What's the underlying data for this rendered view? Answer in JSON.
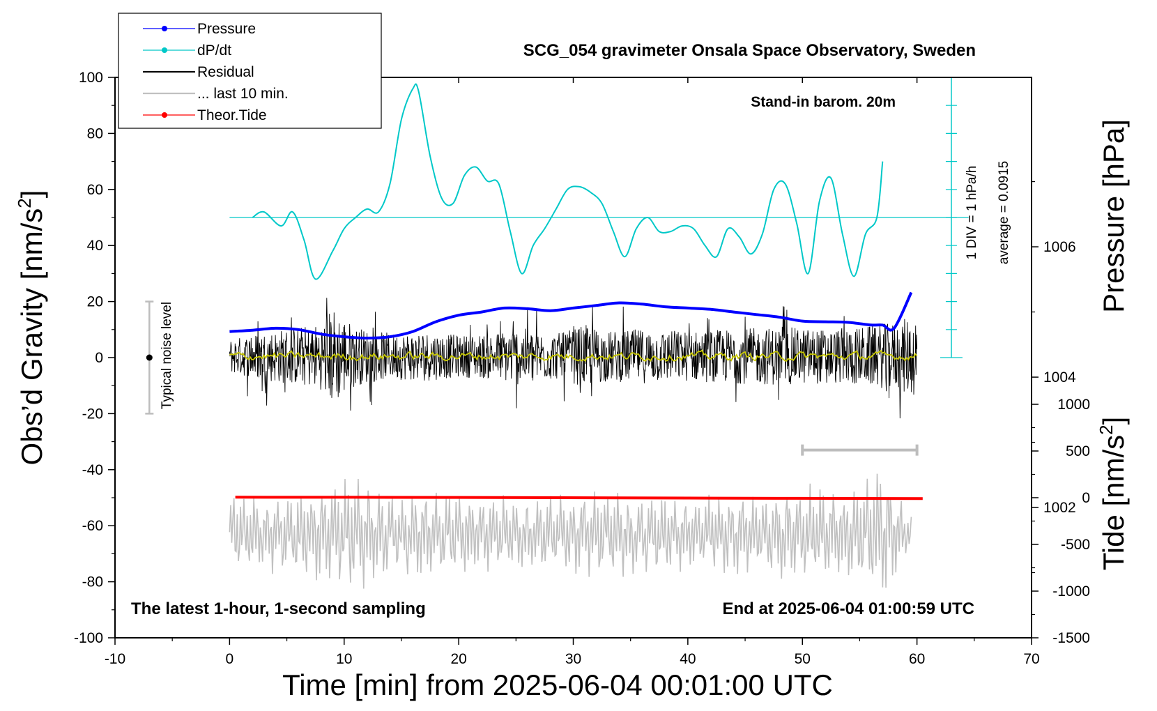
{
  "chart_data": {
    "type": "line",
    "title": "SCG_054 gravimeter Onsala Space Observatory, Sweden",
    "xlabel": "Time [min] from 2025-06-04 00:01:00 UTC",
    "ylabel_left_main": "Obs’d Gravity [nm/s",
    "ylabel_left_sup": "2",
    "ylabel_left_end": "]",
    "ylabel_right_pressure": "Pressure [hPa]",
    "ylabel_right_tide_main": "Tide [nm/s",
    "ylabel_right_tide_sup": "2",
    "ylabel_right_tide_end": "]",
    "xlim": [
      -10,
      70
    ],
    "ylim": [
      -100,
      100
    ],
    "x_ticks": [
      -10,
      0,
      10,
      20,
      30,
      40,
      50,
      60,
      70
    ],
    "y_ticks": [
      -100,
      -80,
      -60,
      -40,
      -20,
      0,
      20,
      40,
      60,
      80,
      100
    ],
    "pressure_axis": {
      "ticks": [
        1002,
        1004,
        1006
      ],
      "ylim": [
        1000,
        1008.6
      ]
    },
    "tide_axis": {
      "ticks": [
        -1500,
        -1000,
        -500,
        0,
        500,
        1000
      ],
      "ylim": [
        -1500,
        1000
      ]
    },
    "annotations": {
      "barometer": "Stand-in barom. 20m",
      "sampling": "The latest 1-hour, 1-second sampling",
      "end_time": "End at 2025-06-04 01:00:59 UTC",
      "noise": "Typical noise level",
      "div": "1 DIV = 1 hPa/h",
      "average": "average = 0.0915"
    },
    "legend": [
      {
        "name": "Pressure",
        "color": "#0000ff",
        "marker": true
      },
      {
        "name": "dP/dt",
        "color": "#00c8c8",
        "marker": true
      },
      {
        "name": "Residual",
        "color": "#000000",
        "marker": false
      },
      {
        "name": "... last 10 min.",
        "color": "#c0c0c0",
        "marker": false
      },
      {
        "name": "Theor.Tide",
        "color": "#ff0000",
        "marker": true
      }
    ],
    "series": [
      {
        "name": "Pressure",
        "axis": "pressure",
        "color": "#0000ff",
        "x": [
          0,
          2,
          4,
          6,
          8,
          10,
          12,
          14,
          16,
          18,
          20,
          22,
          24,
          26,
          28,
          30,
          32,
          34,
          36,
          38,
          40,
          42,
          44,
          46,
          48,
          50,
          52,
          54,
          56,
          57,
          58,
          59.5
        ],
        "y": [
          1004.7,
          1004.72,
          1004.75,
          1004.73,
          1004.66,
          1004.62,
          1004.6,
          1004.62,
          1004.7,
          1004.85,
          1004.95,
          1005.0,
          1005.06,
          1005.05,
          1005.02,
          1005.06,
          1005.1,
          1005.14,
          1005.12,
          1005.08,
          1005.06,
          1005.04,
          1005.0,
          1004.96,
          1004.92,
          1004.86,
          1004.85,
          1004.84,
          1004.8,
          1004.8,
          1004.75,
          1005.3
        ]
      },
      {
        "name": "dP/dt",
        "axis": "gravity",
        "color": "#00c8c8",
        "x": [
          2,
          3,
          4.5,
          5.5,
          6.5,
          7.5,
          9,
          10,
          11,
          12,
          13,
          14,
          15,
          16,
          16.5,
          17.5,
          18.5,
          19.5,
          20.5,
          21.5,
          22.5,
          23.5,
          24.5,
          25.5,
          26.5,
          27.5,
          28.5,
          29.5,
          30.5,
          31.5,
          32.5,
          33.5,
          34.5,
          35.5,
          36.5,
          37.5,
          38.5,
          39.5,
          40.5,
          41.5,
          42.5,
          43.5,
          44.5,
          45.5,
          46.5,
          47.5,
          48.5,
          49.5,
          50.5,
          51.5,
          52.5,
          53.5,
          54.5,
          55.5,
          56.5,
          57
        ],
        "y": [
          50,
          52,
          47,
          52,
          42,
          28,
          38,
          46,
          50,
          53,
          52,
          62,
          85,
          96,
          95,
          72,
          57,
          55,
          65,
          68,
          63,
          62,
          45,
          30,
          40,
          46,
          53,
          60,
          61,
          59,
          55,
          45,
          36,
          46,
          50,
          45,
          45,
          47,
          46,
          40,
          36,
          46,
          43,
          37,
          44,
          60,
          62,
          48,
          30,
          56,
          64,
          44,
          29,
          44,
          50,
          70
        ]
      },
      {
        "name": "Residual",
        "axis": "gravity",
        "color": "#000000",
        "x_range": [
          0,
          60
        ],
        "envelope_x": [
          0,
          3,
          6,
          8,
          9,
          11,
          14,
          17,
          20,
          23,
          25,
          27,
          29,
          31,
          33,
          36,
          40,
          44,
          48,
          52,
          55,
          58,
          60
        ],
        "envelope_y": [
          8,
          12,
          14,
          16,
          24,
          14,
          11,
          12,
          10,
          11,
          14,
          12,
          11,
          15,
          12,
          13,
          12,
          13,
          14,
          13,
          14,
          16,
          20
        ]
      },
      {
        "name": "Residual mean",
        "axis": "gravity",
        "color": "#c8c800",
        "x_range": [
          0,
          60
        ],
        "mean": 0.5
      },
      {
        "name": "... last 10 min.",
        "axis": "gravity",
        "color": "#c0c0c0",
        "x_range": [
          0,
          59.5
        ],
        "center": -63,
        "envelope_x": [
          0,
          4,
          8,
          10,
          12,
          14,
          18,
          22,
          26,
          30,
          34,
          38,
          42,
          46,
          50,
          54,
          57,
          59.5
        ],
        "envelope_y": [
          13,
          12,
          15,
          20,
          18,
          13,
          14,
          12,
          11,
          13,
          13,
          12,
          12,
          13,
          15,
          14,
          22,
          5
        ]
      },
      {
        "name": "Theor.Tide",
        "axis": "tide",
        "color": "#ff0000",
        "x": [
          0.5,
          20,
          40,
          60.5
        ],
        "y": [
          5,
          3,
          -4,
          -10
        ]
      }
    ],
    "noise_bar": {
      "x": -7,
      "y_range": [
        -20,
        20
      ],
      "center": 0
    },
    "window_bar": {
      "x_range": [
        50,
        60
      ],
      "y": -33
    }
  }
}
